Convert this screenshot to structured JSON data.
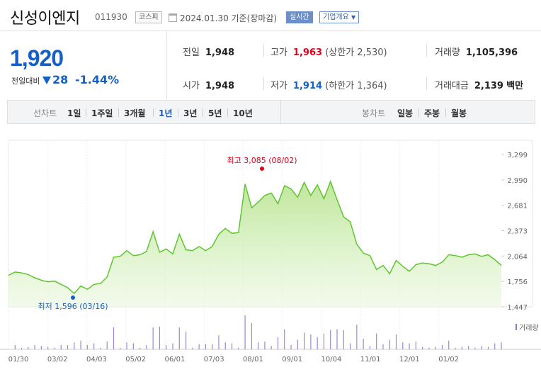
{
  "header": {
    "company_name": "신성이엔지",
    "code": "011930",
    "market": "코스피",
    "date_text": "2024.01.30 기준(장마감)",
    "realtime_label": "실시간",
    "overview_label": "기업개요"
  },
  "price": {
    "current": "1,920",
    "change_label": "전일대비",
    "change_value": "28",
    "change_pct": "-1.44%"
  },
  "stats": {
    "prev_label": "전일",
    "prev_value": "1,948",
    "high_label": "고가",
    "high_value": "1,963",
    "upper_limit": "(상한가 2,530)",
    "volume_label": "거래량",
    "volume_value": "1,105,396",
    "open_label": "시가",
    "open_value": "1,948",
    "low_label": "저가",
    "low_value": "1,914",
    "lower_limit": "(하한가 1,364)",
    "amount_label": "거래대금",
    "amount_value": "2,139",
    "amount_unit": "백만"
  },
  "period_bar": {
    "line_label": "선차트",
    "line_items": [
      "1일",
      "1주일",
      "3개월",
      "1년",
      "3년",
      "5년",
      "10년"
    ],
    "active": "1년",
    "candle_label": "봉차트",
    "candle_items": [
      "일봉",
      "주봉",
      "월봉"
    ]
  },
  "colors": {
    "up": "#e0001b",
    "down": "#1560c8",
    "line": "#5fc62f"
  },
  "chart_data": {
    "type": "area",
    "ylim": [
      1447,
      3299
    ],
    "y_ticks": [
      "3,299",
      "2,990",
      "2,681",
      "2,373",
      "2,064",
      "1,756",
      "1,447"
    ],
    "x_labels": [
      "01/30",
      "03/02",
      "04/03",
      "05/02",
      "06/01",
      "07/03",
      "08/01",
      "09/01",
      "10/04",
      "11/01",
      "12/01",
      "01/02"
    ],
    "max_label": "최고 3,085 (08/02)",
    "min_label": "최저 1,596 (03/16)",
    "volume_legend": "거래량",
    "series": [
      1830,
      1870,
      1860,
      1840,
      1800,
      1770,
      1750,
      1760,
      1720,
      1680,
      1610,
      1700,
      1660,
      1720,
      1730,
      1810,
      2050,
      2060,
      2130,
      2070,
      2080,
      2120,
      2360,
      2110,
      2150,
      2090,
      2330,
      2140,
      2130,
      2180,
      2130,
      2180,
      2330,
      2400,
      2340,
      2350,
      2940,
      2650,
      2720,
      2800,
      2830,
      2700,
      2920,
      2880,
      2780,
      2960,
      2800,
      2930,
      2760,
      2970,
      2750,
      2540,
      2480,
      2210,
      2100,
      2070,
      1900,
      1950,
      1850,
      2010,
      1940,
      1880,
      1960,
      1980,
      1970,
      1950,
      1990,
      2080,
      2070,
      2050,
      2080,
      2090,
      2060,
      2080,
      2020,
      1950
    ]
  }
}
